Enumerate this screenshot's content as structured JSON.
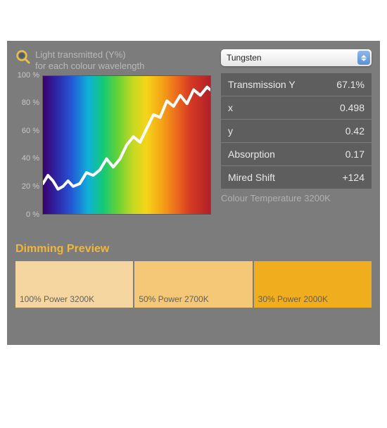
{
  "panel": {
    "background": "#7c7c7c"
  },
  "chart": {
    "title_line1": "Light transmitted (Y%)",
    "title_line2": "for each colour wavelength",
    "title_color": "#b8b8b8",
    "y_ticks": [
      "100 %",
      "80 %",
      "60 %",
      "40 %",
      "20 %",
      "0 %"
    ],
    "y_tick_color": "#c8c8c8",
    "ylim": [
      0,
      100
    ],
    "spectrum_stops": [
      {
        "pct": 0,
        "hex": "#3a006e"
      },
      {
        "pct": 10,
        "hex": "#2c2fb2"
      },
      {
        "pct": 17,
        "hex": "#2457d6"
      },
      {
        "pct": 27,
        "hex": "#0fb0d8"
      },
      {
        "pct": 36,
        "hex": "#14c977"
      },
      {
        "pct": 44,
        "hex": "#5fd13a"
      },
      {
        "pct": 54,
        "hex": "#c8d820"
      },
      {
        "pct": 62,
        "hex": "#f6d518"
      },
      {
        "pct": 71,
        "hex": "#f4a316"
      },
      {
        "pct": 80,
        "hex": "#ec6a1e"
      },
      {
        "pct": 88,
        "hex": "#d63a23"
      },
      {
        "pct": 100,
        "hex": "#b12028"
      }
    ],
    "curve": {
      "stroke": "#ffffff",
      "stroke_width": 4,
      "points": [
        [
          0,
          22
        ],
        [
          3,
          28
        ],
        [
          6,
          24
        ],
        [
          9,
          18
        ],
        [
          12,
          20
        ],
        [
          15,
          24
        ],
        [
          18,
          20
        ],
        [
          22,
          22
        ],
        [
          26,
          30
        ],
        [
          30,
          28
        ],
        [
          34,
          32
        ],
        [
          38,
          40
        ],
        [
          42,
          34
        ],
        [
          46,
          40
        ],
        [
          50,
          50
        ],
        [
          54,
          56
        ],
        [
          58,
          52
        ],
        [
          62,
          62
        ],
        [
          66,
          72
        ],
        [
          70,
          70
        ],
        [
          74,
          82
        ],
        [
          78,
          78
        ],
        [
          82,
          86
        ],
        [
          86,
          80
        ],
        [
          90,
          90
        ],
        [
          94,
          86
        ],
        [
          98,
          92
        ],
        [
          100,
          90
        ]
      ]
    }
  },
  "source_select": {
    "value": "Tungsten"
  },
  "table": {
    "row_bg": "#5e5e5e",
    "text_color": "#e8e8e8",
    "rows": [
      {
        "label": "Transmission Y",
        "value": "67.1%"
      },
      {
        "label": "x",
        "value": "0.498"
      },
      {
        "label": "y",
        "value": "0.42"
      },
      {
        "label": "Absorption",
        "value": "0.17"
      },
      {
        "label": "Mired Shift",
        "value": "+124"
      }
    ],
    "footer": "Colour Temperature 3200K",
    "footer_color": "#b0b0b0"
  },
  "dimming": {
    "title": "Dimming Preview",
    "title_color": "#f1b63a",
    "swatches": [
      {
        "label": "100% Power 3200K",
        "color": "#f6d6a0"
      },
      {
        "label": "50% Power 2700K",
        "color": "#f5c878"
      },
      {
        "label": "30% Power 2000K",
        "color": "#f0ae1f"
      }
    ],
    "label_color": "rgba(90,90,90,0.95)"
  }
}
